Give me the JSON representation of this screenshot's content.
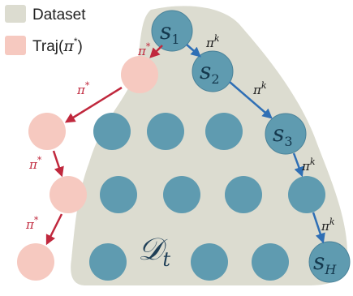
{
  "legend": {
    "dataset_label": "Dataset",
    "traj_label_prefix": "Traj(",
    "traj_label_pi": "π",
    "traj_label_star": "*",
    "traj_label_suffix": ")",
    "dataset_color": "#dcdcd0",
    "traj_color": "#f6c9c0"
  },
  "colors": {
    "state_fill": "#5f9bb0",
    "state_stroke": "#4a8299",
    "blue_arrow": "#2f6fb5",
    "red_arrow": "#c0283d",
    "dataset_region": "#dcdcd0"
  },
  "states": {
    "s1": {
      "base": "s",
      "sub": "1"
    },
    "s2": {
      "base": "s",
      "sub": "2"
    },
    "s3": {
      "base": "s",
      "sub": "3"
    },
    "sH": {
      "base": "s",
      "sub": "H"
    }
  },
  "policy": {
    "learned": {
      "base": "π",
      "sup": "k"
    },
    "expert": {
      "base": "π",
      "sup": "*"
    }
  },
  "dataset_label": {
    "letter": "𝒟",
    "sub": "t"
  }
}
